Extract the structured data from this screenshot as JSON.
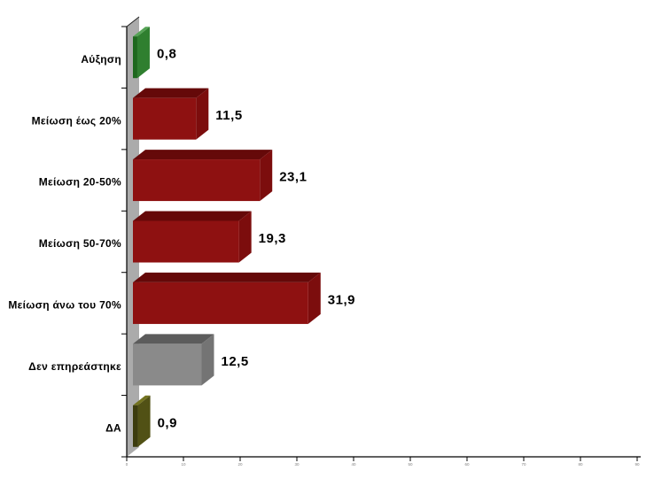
{
  "chart_data": {
    "type": "bar",
    "orientation": "horizontal",
    "style_3d": true,
    "title": "",
    "xlabel": "",
    "ylabel": "",
    "categories": [
      "Αύξηση",
      "Μείωση έως 20%",
      "Μείωση 20-50%",
      "Μείωση 50-70%",
      "Μείωση άνω του 70%",
      "Δεν επηρεάστηκε",
      "ΔΑ"
    ],
    "values": [
      0.8,
      11.5,
      23.1,
      19.3,
      31.9,
      12.5,
      0.9
    ],
    "value_labels": [
      "0,8",
      "11,5",
      "23,1",
      "19,3",
      "31,9",
      "12,5",
      "0,9"
    ],
    "bar_colors": [
      {
        "front": "#1D681D",
        "top": "#55A355",
        "side": "#2F7F2F"
      },
      {
        "front": "#8E1111",
        "top": "#650909",
        "side": "#7C0D0D"
      },
      {
        "front": "#8E1111",
        "top": "#650909",
        "side": "#7C0D0D"
      },
      {
        "front": "#8E1111",
        "top": "#650909",
        "side": "#7C0D0D"
      },
      {
        "front": "#8E1111",
        "top": "#650909",
        "side": "#7C0D0D"
      },
      {
        "front": "#8A8A8A",
        "top": "#5C5C5C",
        "side": "#747474"
      },
      {
        "front": "#3C3C0E",
        "top": "#73731F",
        "side": "#515115"
      }
    ],
    "x_axis": {
      "min": 0,
      "max": 90,
      "tick_step": 10,
      "tick_labels": [
        "0",
        "10",
        "20",
        "30",
        "40",
        "50",
        "60",
        "70",
        "80",
        "90"
      ]
    },
    "gridlines": false,
    "legend_shown": false,
    "colors": {
      "wall": "#ABABAB",
      "wall_edge": "#222222",
      "axis": "#000000",
      "tick_label": "#808080",
      "value_label": "#000000",
      "category_label": "#000000",
      "background": "#FFFFFF"
    }
  }
}
